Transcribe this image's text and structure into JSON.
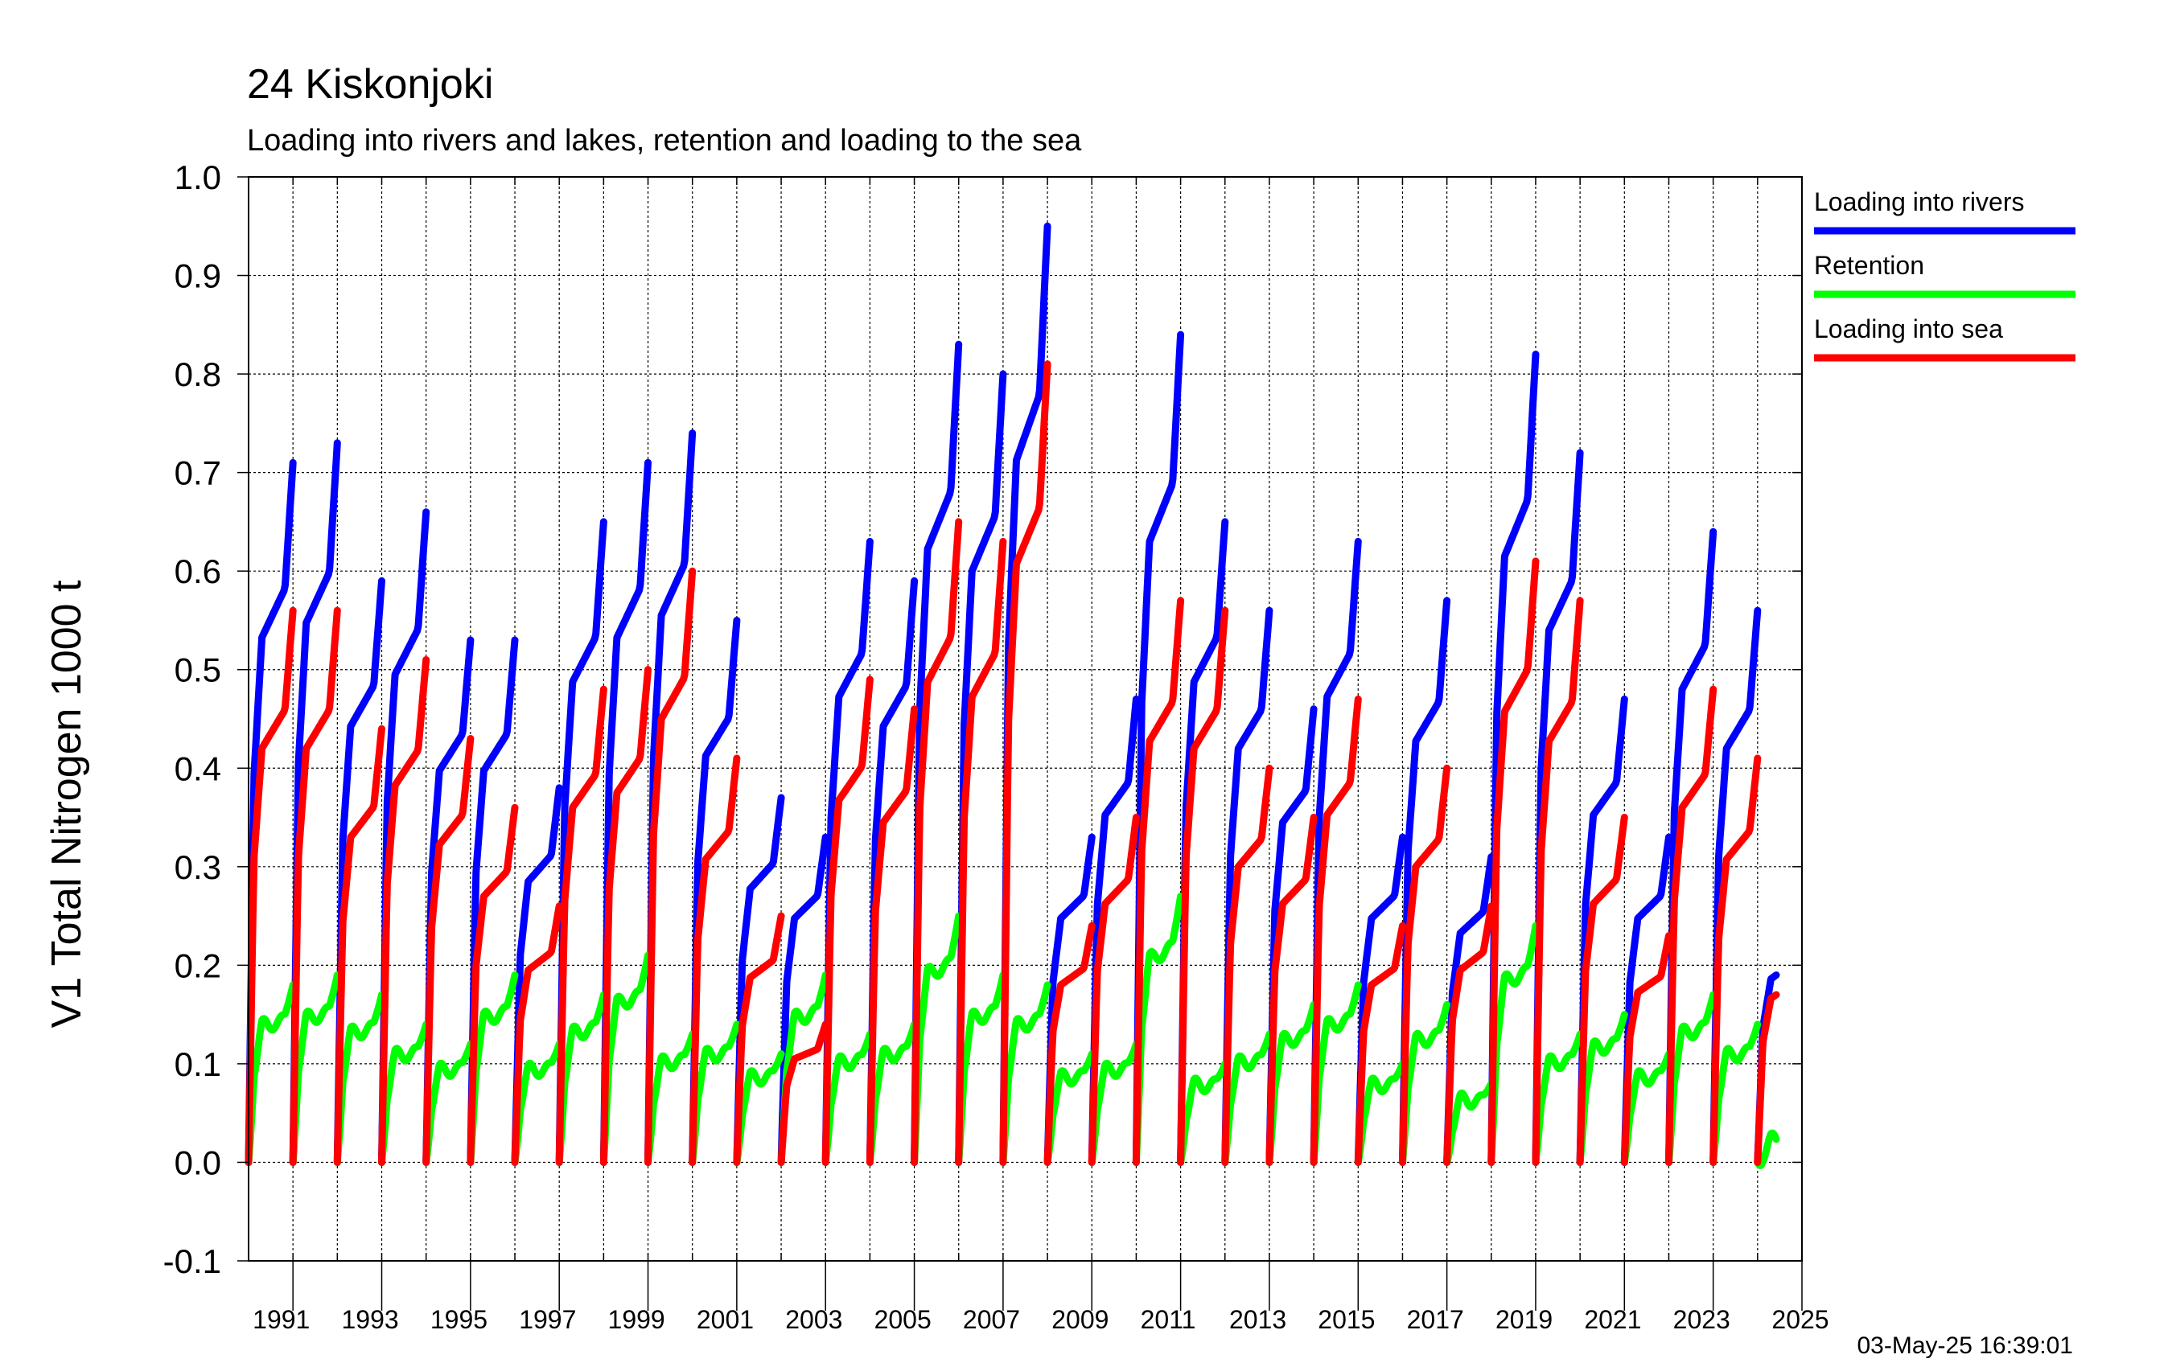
{
  "chart_data": {
    "type": "line",
    "title": "24 Kiskonjoki",
    "subtitle": "Loading into rivers and lakes, retention and loading to the sea",
    "ylabel": "V1 Total Nitrogen 1000 t",
    "xlabel": "",
    "ylim": [
      -0.1,
      1.0
    ],
    "xlim": [
      1990,
      2025
    ],
    "yticks": [
      "1.0",
      "0.9",
      "0.8",
      "0.7",
      "0.6",
      "0.5",
      "0.4",
      "0.3",
      "0.2",
      "0.1",
      "0.0",
      "-0.1"
    ],
    "xticks": [
      "1991",
      "1993",
      "1995",
      "1997",
      "1999",
      "2001",
      "2003",
      "2005",
      "2007",
      "2009",
      "2011",
      "2013",
      "2015",
      "2017",
      "2019",
      "2021",
      "2023",
      "2025"
    ],
    "grid": true,
    "legend_position": "right",
    "timestamp": "03-May-25 16:39:01",
    "annual_series": {
      "years": [
        1990,
        1991,
        1992,
        1993,
        1994,
        1995,
        1996,
        1997,
        1998,
        1999,
        2000,
        2001,
        2002,
        2003,
        2004,
        2005,
        2006,
        2007,
        2008,
        2009,
        2010,
        2011,
        2012,
        2013,
        2014,
        2015,
        2016,
        2017,
        2018,
        2019,
        2020,
        2021,
        2022,
        2023,
        2024
      ],
      "loading_into_rivers_year_end": [
        0.71,
        0.73,
        0.59,
        0.66,
        0.53,
        0.53,
        0.38,
        0.65,
        0.71,
        0.74,
        0.55,
        0.37,
        0.33,
        0.63,
        0.59,
        0.83,
        0.8,
        0.95,
        0.33,
        0.47,
        0.84,
        0.65,
        0.56,
        0.46,
        0.63,
        0.33,
        0.57,
        0.31,
        0.82,
        0.72,
        0.47,
        0.33,
        0.64,
        0.56,
        0.19
      ],
      "retention_year_end": [
        0.18,
        0.19,
        0.17,
        0.14,
        0.12,
        0.19,
        0.12,
        0.17,
        0.21,
        0.13,
        0.14,
        0.11,
        0.19,
        0.13,
        0.14,
        0.25,
        0.19,
        0.18,
        0.11,
        0.12,
        0.27,
        0.1,
        0.13,
        0.16,
        0.18,
        0.1,
        0.16,
        0.08,
        0.24,
        0.13,
        0.15,
        0.11,
        0.17,
        0.14,
        0.02
      ],
      "loading_into_sea_year_end": [
        0.56,
        0.56,
        0.44,
        0.51,
        0.43,
        0.36,
        0.26,
        0.48,
        0.5,
        0.6,
        0.41,
        0.25,
        0.14,
        0.49,
        0.46,
        0.65,
        0.63,
        0.81,
        0.24,
        0.35,
        0.57,
        0.56,
        0.4,
        0.35,
        0.47,
        0.24,
        0.4,
        0.26,
        0.61,
        0.57,
        0.35,
        0.23,
        0.48,
        0.41,
        0.17
      ]
    },
    "series": [
      {
        "name": "Loading into rivers",
        "color": "#0000ff"
      },
      {
        "name": "Retention",
        "color": "#00ff00"
      },
      {
        "name": "Loading into sea",
        "color": "#ff0000"
      }
    ]
  }
}
